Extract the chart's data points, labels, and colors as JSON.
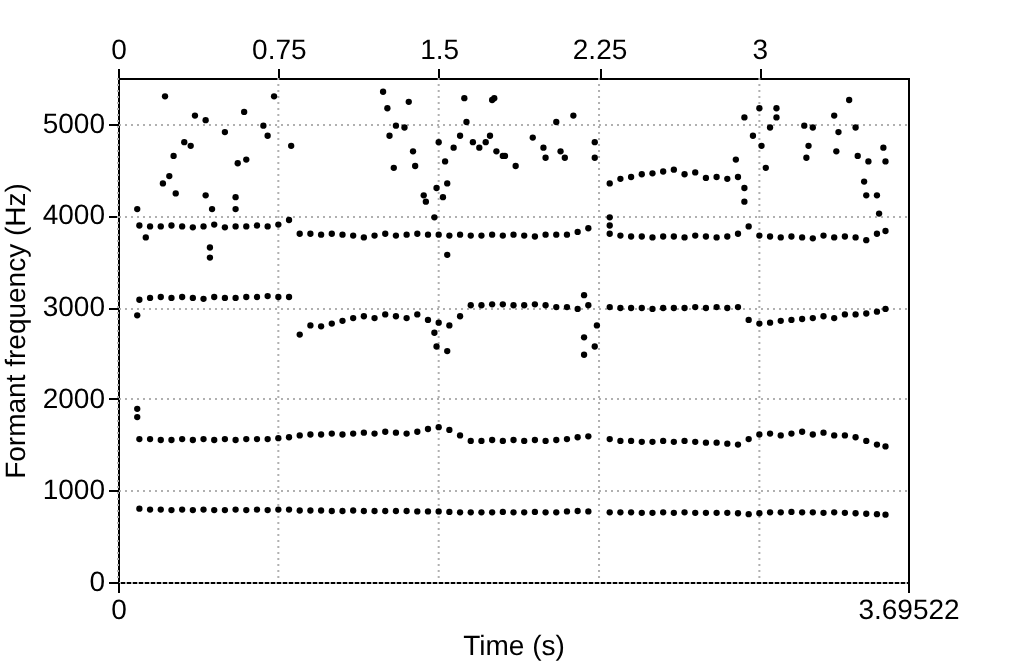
{
  "chart_data": {
    "type": "scatter",
    "xlabel": "Time (s)",
    "ylabel": "Formant frequency (Hz)",
    "xlim": [
      0,
      3.69522
    ],
    "xticks": [
      0,
      3.69522
    ],
    "x2lim": [
      0,
      3.69522
    ],
    "x2ticks": [
      0,
      0.75,
      1.5,
      2.25,
      3
    ],
    "ylim": [
      0,
      5500
    ],
    "yticks": [
      0,
      1000,
      2000,
      3000,
      4000,
      5000
    ],
    "grid": true,
    "marker": "circle",
    "x": [
      0.1,
      0.15,
      0.2,
      0.25,
      0.3,
      0.35,
      0.4,
      0.45,
      0.5,
      0.55,
      0.6,
      0.65,
      0.7,
      0.75,
      0.8,
      0.85,
      0.9,
      0.95,
      1.0,
      1.05,
      1.1,
      1.15,
      1.2,
      1.25,
      1.3,
      1.35,
      1.4,
      1.45,
      1.5,
      1.55,
      1.6,
      1.65,
      1.7,
      1.75,
      1.8,
      1.85,
      1.9,
      1.95,
      2.0,
      2.05,
      2.1,
      2.15,
      2.2,
      2.3,
      2.35,
      2.4,
      2.45,
      2.5,
      2.55,
      2.6,
      2.65,
      2.7,
      2.75,
      2.8,
      2.85,
      2.9,
      2.95,
      3.0,
      3.05,
      3.1,
      3.15,
      3.2,
      3.25,
      3.3,
      3.35,
      3.4,
      3.45,
      3.5,
      3.55,
      3.59
    ],
    "series": [
      {
        "color": "#000000",
        "values": [
          800,
          790,
          790,
          785,
          790,
          785,
          790,
          785,
          785,
          790,
          785,
          790,
          785,
          790,
          790,
          780,
          780,
          780,
          775,
          775,
          780,
          775,
          775,
          775,
          775,
          775,
          770,
          770,
          770,
          765,
          760,
          760,
          760,
          760,
          765,
          760,
          760,
          765,
          760,
          760,
          770,
          775,
          770,
          760,
          760,
          760,
          755,
          755,
          760,
          755,
          760,
          755,
          755,
          755,
          755,
          750,
          740,
          750,
          760,
          760,
          765,
          760,
          760,
          755,
          760,
          755,
          750,
          745,
          740,
          735
        ]
      },
      {
        "color": "#000000",
        "values": [
          1560,
          1560,
          1550,
          1550,
          1560,
          1550,
          1560,
          1550,
          1560,
          1550,
          1560,
          1560,
          1560,
          1570,
          1580,
          1600,
          1610,
          1610,
          1620,
          1610,
          1620,
          1630,
          1620,
          1640,
          1630,
          1620,
          1640,
          1670,
          1690,
          1660,
          1600,
          1540,
          1540,
          1550,
          1540,
          1550,
          1540,
          1550,
          1540,
          1550,
          1560,
          1580,
          1590,
          1560,
          1540,
          1540,
          1530,
          1530,
          1540,
          1530,
          1540,
          1530,
          1520,
          1520,
          1510,
          1500,
          1560,
          1610,
          1620,
          1600,
          1620,
          1640,
          1610,
          1630,
          1600,
          1600,
          1580,
          1540,
          1500,
          1480
        ]
      },
      {
        "color": "#000000",
        "values": [
          3080,
          3100,
          3110,
          3100,
          3110,
          3100,
          3090,
          3110,
          3100,
          3100,
          3110,
          3110,
          3120,
          3110,
          3110,
          2700,
          2800,
          2790,
          2820,
          2850,
          2880,
          2900,
          2880,
          2920,
          2900,
          2880,
          2920,
          2860,
          2830,
          2800,
          2900,
          3020,
          3020,
          3030,
          3030,
          3020,
          3020,
          3030,
          3020,
          3000,
          3000,
          2980,
          3020,
          3000,
          2990,
          2990,
          2990,
          2980,
          2990,
          2990,
          2990,
          3000,
          2990,
          3000,
          2990,
          3000,
          2860,
          2820,
          2830,
          2850,
          2860,
          2870,
          2880,
          2900,
          2880,
          2920,
          2920,
          2930,
          2950,
          2980
        ]
      },
      {
        "color": "#000000",
        "values": [
          3890,
          3880,
          3880,
          3890,
          3880,
          3870,
          3880,
          3900,
          3870,
          3880,
          3880,
          3890,
          3880,
          3900,
          3950,
          3800,
          3800,
          3790,
          3800,
          3790,
          3780,
          3760,
          3780,
          3800,
          3780,
          3790,
          3800,
          3790,
          3790,
          3780,
          3790,
          3780,
          3780,
          3790,
          3780,
          3790,
          3780,
          3770,
          3790,
          3790,
          3790,
          3820,
          3860,
          3800,
          3780,
          3770,
          3770,
          3760,
          3770,
          3770,
          3760,
          3780,
          3770,
          3760,
          3770,
          3800,
          3880,
          3780,
          3770,
          3760,
          3770,
          3760,
          3750,
          3780,
          3760,
          3770,
          3760,
          3730,
          3800,
          3830
        ]
      },
      {
        "color": "#000000",
        "x": [
          0.09,
          0.09,
          0.09,
          0.09,
          0.13,
          0.21,
          0.22,
          0.24,
          0.26,
          0.27,
          0.31,
          0.34,
          0.36,
          0.41,
          0.41,
          0.43,
          0.43,
          0.44,
          0.5,
          0.55,
          0.55,
          0.56,
          0.59,
          0.6,
          0.68,
          0.7,
          0.73,
          0.81,
          1.24,
          1.26,
          1.27,
          1.29,
          1.3,
          1.34,
          1.36,
          1.38,
          1.39,
          1.43,
          1.44,
          1.48,
          1.48,
          1.49,
          1.49,
          1.5,
          1.52,
          1.53,
          1.54,
          1.54,
          1.54,
          1.57,
          1.6,
          1.62,
          1.63,
          1.66,
          1.69,
          1.72,
          1.74,
          1.75,
          1.76,
          1.77,
          1.8,
          1.81,
          1.86,
          1.94,
          1.99,
          2.0,
          2.05,
          2.07,
          2.09,
          2.13,
          2.18,
          2.18,
          2.18,
          2.23,
          2.23,
          2.23,
          2.24,
          2.3,
          2.3,
          2.3,
          2.35,
          2.4,
          2.45,
          2.5,
          2.55,
          2.6,
          2.65,
          2.7,
          2.75,
          2.8,
          2.85,
          2.89,
          2.9,
          2.93,
          2.93,
          2.93,
          2.97,
          3.0,
          3.01,
          3.03,
          3.05,
          3.08,
          3.08,
          3.21,
          3.22,
          3.23,
          3.25,
          3.35,
          3.36,
          3.37,
          3.42,
          3.45,
          3.46,
          3.49,
          3.5,
          3.51,
          3.55,
          3.56,
          3.58,
          3.59
        ],
        "values": [
          2910,
          1890,
          1800,
          4070,
          3760,
          4350,
          5300,
          4430,
          4650,
          4240,
          4800,
          4760,
          5090,
          5040,
          4220,
          3650,
          3540,
          4070,
          4910,
          4200,
          4070,
          4570,
          5130,
          4610,
          4980,
          4870,
          5300,
          4760,
          5350,
          5170,
          4870,
          4520,
          4980,
          4960,
          5240,
          4700,
          4540,
          4220,
          4150,
          3980,
          2720,
          4300,
          2570,
          4800,
          4200,
          4590,
          3570,
          2520,
          4350,
          4740,
          4870,
          5280,
          5020,
          4800,
          4740,
          4800,
          4870,
          5260,
          5280,
          4700,
          4650,
          4650,
          4540,
          4850,
          4740,
          4630,
          5020,
          4700,
          4630,
          5090,
          3130,
          2670,
          2480,
          4800,
          4630,
          2570,
          2800,
          3980,
          3890,
          4350,
          4400,
          4420,
          4450,
          4460,
          4480,
          4500,
          4450,
          4470,
          4410,
          4420,
          4400,
          4610,
          4420,
          5070,
          4300,
          4150,
          4870,
          5170,
          4760,
          4520,
          4960,
          5170,
          5070,
          4980,
          4630,
          4760,
          4960,
          5090,
          4700,
          4910,
          5260,
          4960,
          4650,
          4370,
          4220,
          4590,
          4220,
          4020,
          4740,
          4590
        ]
      }
    ]
  }
}
